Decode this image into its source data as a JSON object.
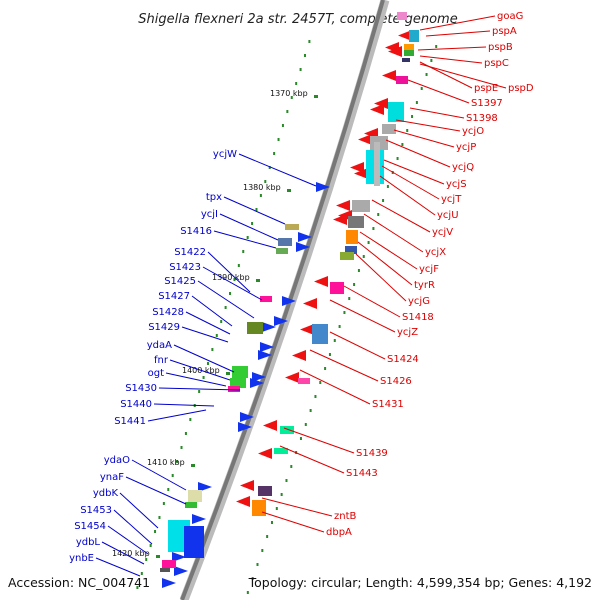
{
  "title": "Shigella flexneri 2a str. 2457T, complete genome",
  "footer": {
    "accession": "Accession: NC_004741",
    "summary": "Topology: circular; Length: 4,599,354 bp; Genes: 4,192"
  },
  "colors": {
    "forward_label": "#0000cc",
    "reverse_label": "#dd0000",
    "backbone": "#777777",
    "tick": "#2a8a2a"
  },
  "kbp_markers": [
    "1370 kbp",
    "1380 kbp",
    "1390 kbp",
    "1400 kbp",
    "1410 kbp",
    "1420 kbp"
  ],
  "left_labels": [
    "ycjW",
    "tpx",
    "ycjI",
    "S1416",
    "S1422",
    "S1423",
    "S1425",
    "S1427",
    "S1428",
    "S1429",
    "ydaA",
    "fnr",
    "ogt",
    "S1430",
    "S1440",
    "S1441",
    "ydaO",
    "ynaF",
    "ydbK",
    "S1453",
    "S1454",
    "ydbL",
    "ynbE"
  ],
  "right_labels": [
    "goaG",
    "pspA",
    "pspB",
    "pspC",
    "pspE",
    "pspD",
    "S1397",
    "S1398",
    "ycjO",
    "ycjP",
    "ycjQ",
    "ycjS",
    "ycjT",
    "ycjU",
    "ycjV",
    "ycjX",
    "ycjF",
    "tyrR",
    "ycjG",
    "S1418",
    "ycjZ",
    "S1424",
    "S1426",
    "S1431",
    "S1439",
    "S1443",
    "zntB",
    "dbpA"
  ]
}
